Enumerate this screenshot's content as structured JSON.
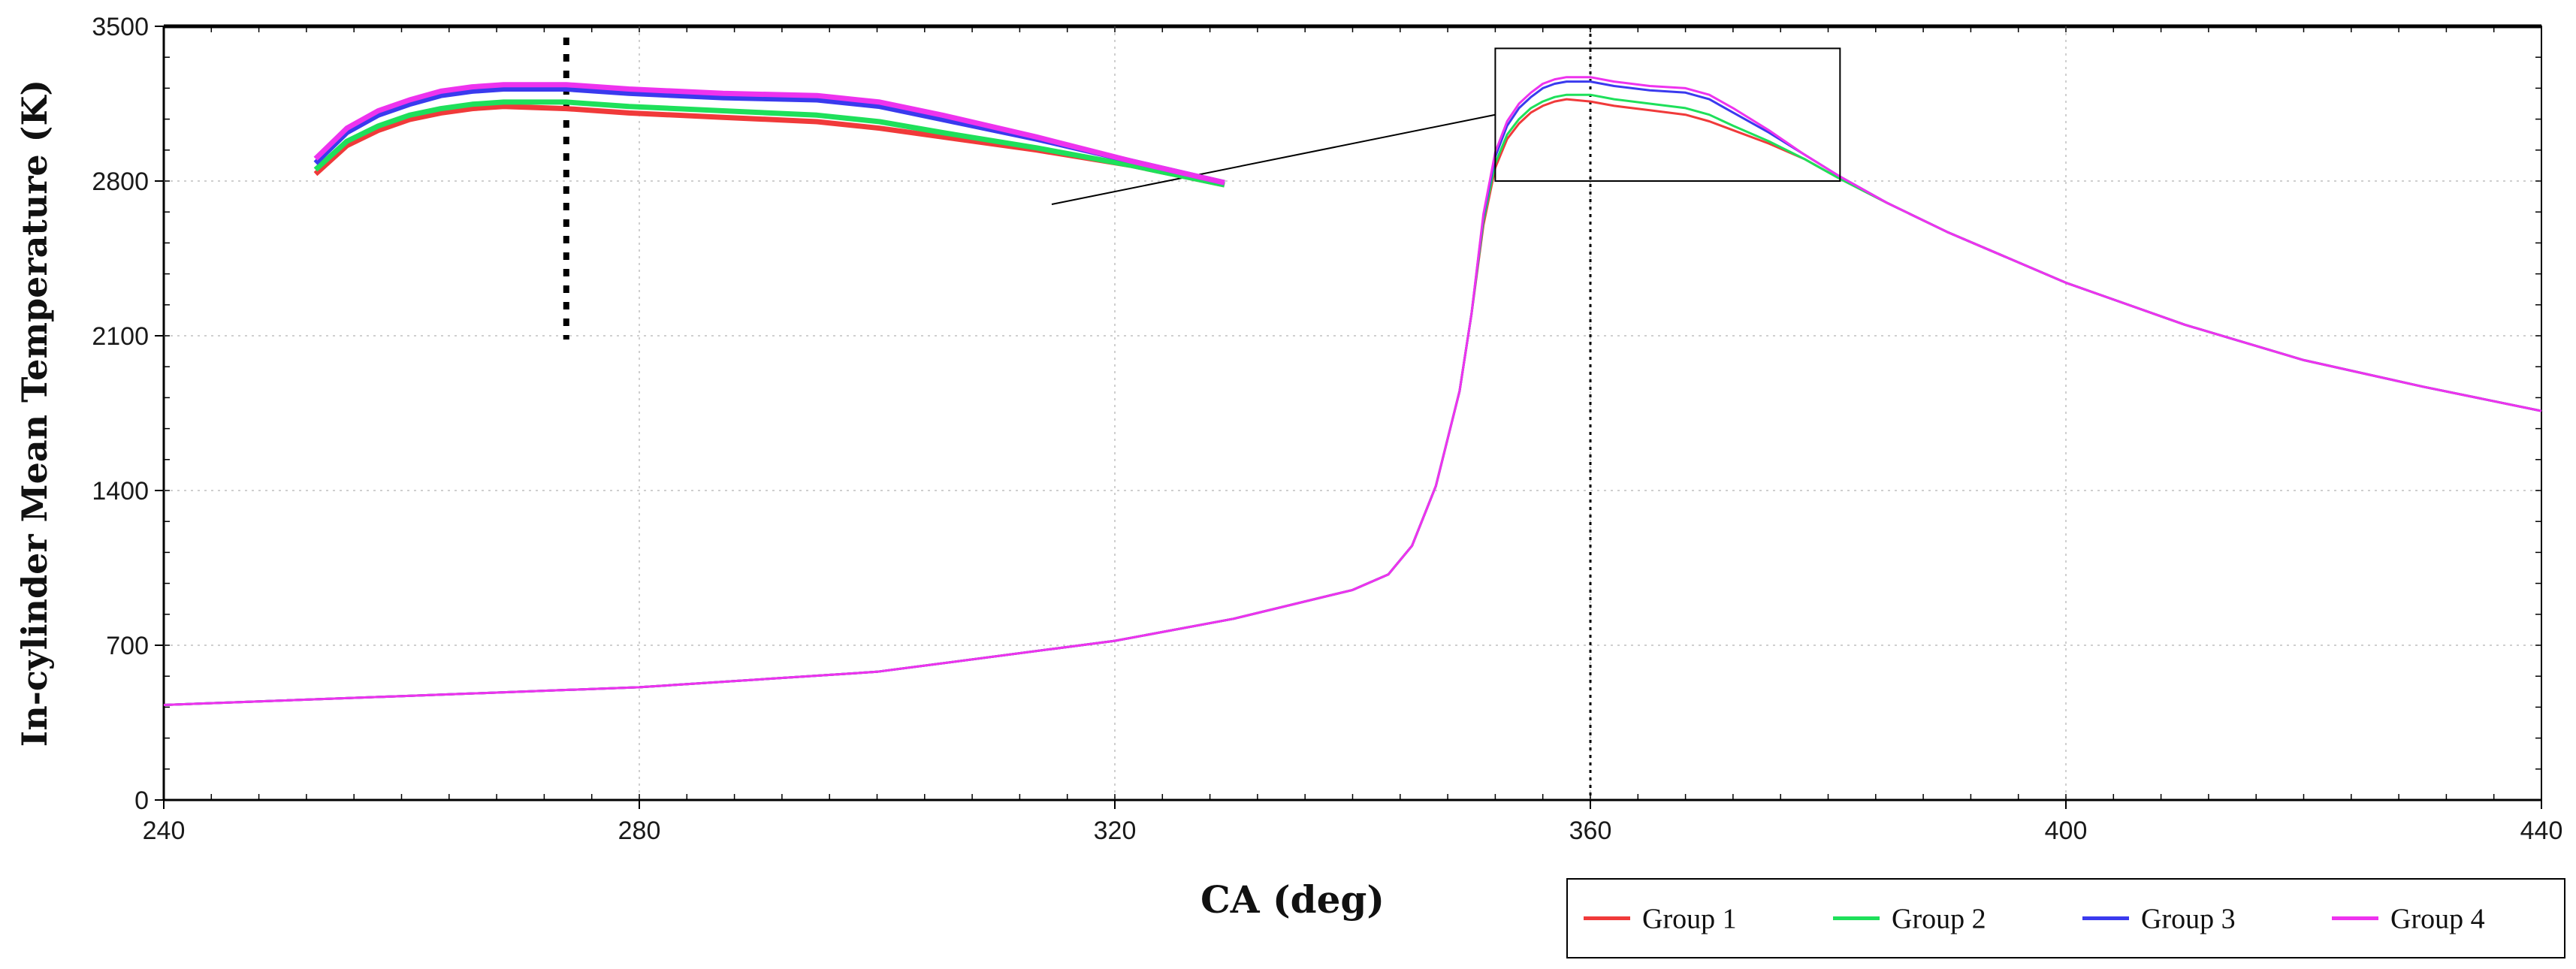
{
  "chart_data": {
    "type": "line",
    "title": "",
    "xlabel": "CA (deg)",
    "ylabel": "In-cylinder Mean Temperature (K)",
    "xlim": [
      240,
      440
    ],
    "ylim": [
      0,
      3500
    ],
    "x_ticks": [
      "240",
      "280",
      "320",
      "360",
      "400",
      "440"
    ],
    "y_ticks": [
      "0",
      "700",
      "1400",
      "2100",
      "2800",
      "3500"
    ],
    "grid": "dotted",
    "reference_line_x": 360,
    "legend_position": "bottom-right",
    "x": [
      240,
      260,
      280,
      300,
      320,
      330,
      340,
      343,
      345,
      347,
      349,
      350,
      351,
      352,
      353,
      354,
      355,
      356,
      357,
      358,
      360,
      362,
      365,
      368,
      370,
      372,
      375,
      378,
      381,
      385,
      390,
      400,
      410,
      420,
      430,
      440
    ],
    "series": [
      {
        "name": "Group 1",
        "color": "#f03a3a",
        "values": [
          430,
          470,
          510,
          580,
          720,
          820,
          950,
          1020,
          1150,
          1420,
          1850,
          2200,
          2600,
          2860,
          2990,
          3060,
          3110,
          3140,
          3160,
          3170,
          3160,
          3140,
          3120,
          3100,
          3070,
          3030,
          2970,
          2900,
          2810,
          2700,
          2570,
          2340,
          2150,
          1990,
          1870,
          1760
        ]
      },
      {
        "name": "Group 2",
        "color": "#1ee05a",
        "values": [
          430,
          470,
          510,
          580,
          720,
          820,
          950,
          1020,
          1150,
          1420,
          1850,
          2200,
          2620,
          2880,
          3010,
          3080,
          3130,
          3160,
          3180,
          3190,
          3190,
          3170,
          3150,
          3130,
          3100,
          3050,
          2980,
          2900,
          2810,
          2700,
          2570,
          2340,
          2150,
          1990,
          1870,
          1760
        ]
      },
      {
        "name": "Group 3",
        "color": "#3a3aee",
        "values": [
          430,
          470,
          510,
          580,
          720,
          820,
          950,
          1020,
          1150,
          1420,
          1850,
          2200,
          2640,
          2910,
          3050,
          3130,
          3180,
          3220,
          3240,
          3250,
          3250,
          3230,
          3210,
          3200,
          3170,
          3110,
          3020,
          2920,
          2820,
          2700,
          2570,
          2340,
          2150,
          1990,
          1870,
          1760
        ]
      },
      {
        "name": "Group 4",
        "color": "#ee33ee",
        "values": [
          430,
          470,
          510,
          580,
          720,
          820,
          950,
          1020,
          1150,
          1420,
          1850,
          2200,
          2650,
          2930,
          3070,
          3150,
          3200,
          3240,
          3260,
          3270,
          3270,
          3250,
          3230,
          3220,
          3190,
          3130,
          3030,
          2920,
          2820,
          2700,
          2570,
          2340,
          2150,
          1990,
          1870,
          1760
        ]
      }
    ],
    "inset": {
      "source_xrange": [
        352,
        381
      ],
      "source_yrange": [
        2800,
        3400
      ],
      "peak_marker_x": 360
    }
  }
}
